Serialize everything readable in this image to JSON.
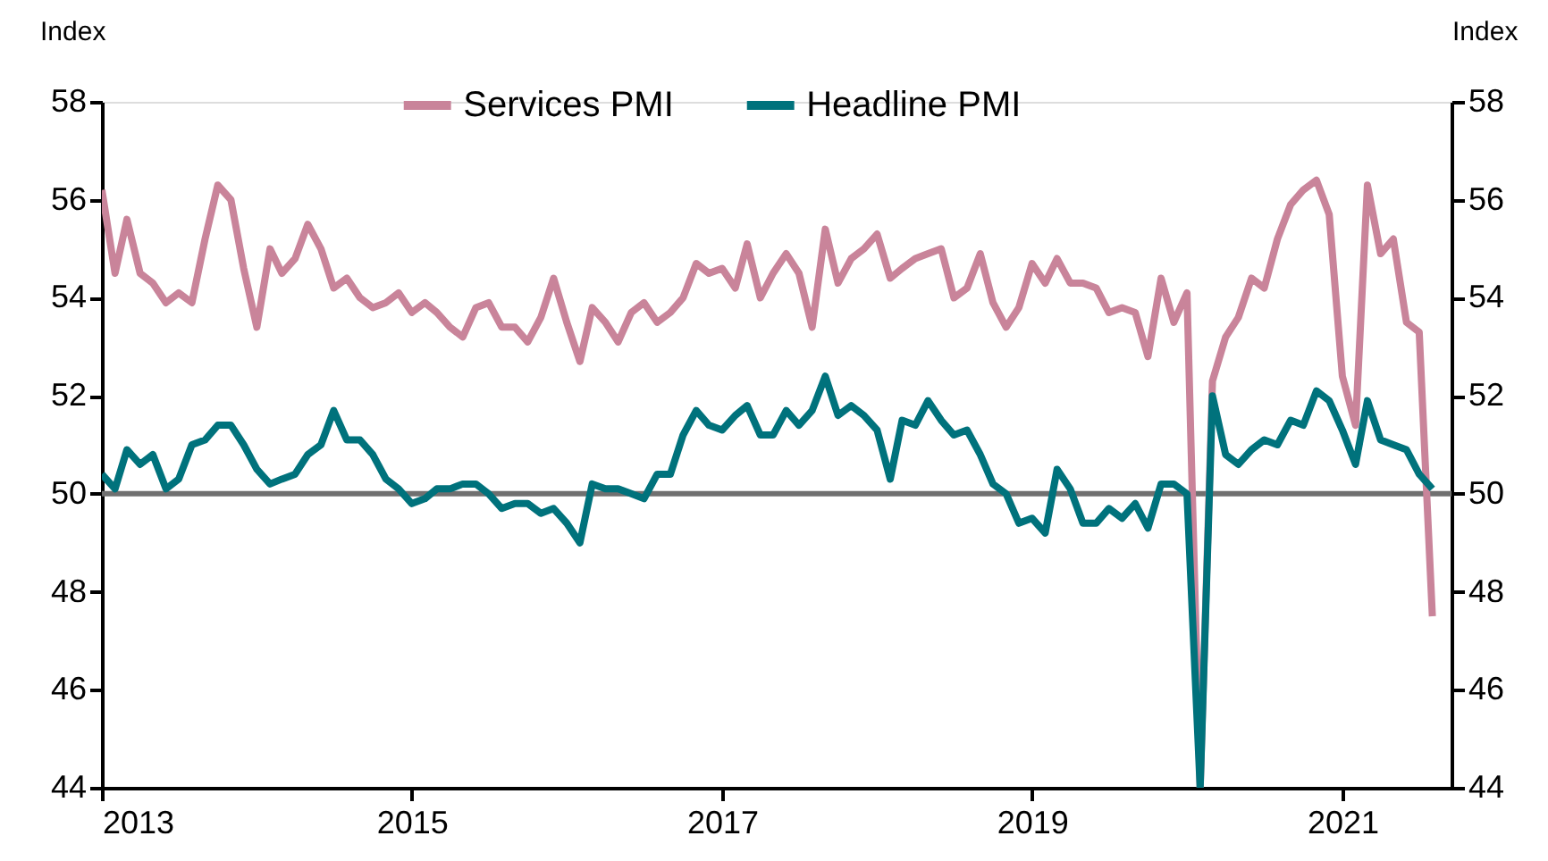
{
  "chart_data": {
    "type": "line",
    "ylabel": "Index",
    "y2label": "Index",
    "xlim": [
      "2013-01",
      "2021-09-15"
    ],
    "xticks": [
      {
        "value": "2013",
        "label": "2013"
      },
      {
        "value": "2015",
        "label": "2015"
      },
      {
        "value": "2017",
        "label": "2017"
      },
      {
        "value": "2019",
        "label": "2019"
      },
      {
        "value": "2021",
        "label": "2021"
      }
    ],
    "ylim": [
      44,
      58
    ],
    "yticks": [
      44,
      46,
      48,
      50,
      52,
      54,
      56,
      58
    ],
    "y2lim": [
      44,
      58
    ],
    "y2ticks": [
      44,
      46,
      48,
      50,
      52,
      54,
      56,
      58
    ],
    "legend": "top",
    "grid": false,
    "x": [
      "2013-01",
      "2013-02",
      "2013-03",
      "2013-04",
      "2013-05",
      "2013-06",
      "2013-07",
      "2013-08",
      "2013-09",
      "2013-10",
      "2013-11",
      "2013-12",
      "2014-01",
      "2014-02",
      "2014-03",
      "2014-04",
      "2014-05",
      "2014-06",
      "2014-07",
      "2014-08",
      "2014-09",
      "2014-10",
      "2014-11",
      "2014-12",
      "2015-01",
      "2015-02",
      "2015-03",
      "2015-04",
      "2015-05",
      "2015-06",
      "2015-07",
      "2015-08",
      "2015-09",
      "2015-10",
      "2015-11",
      "2015-12",
      "2016-01",
      "2016-02",
      "2016-03",
      "2016-04",
      "2016-05",
      "2016-06",
      "2016-07",
      "2016-08",
      "2016-09",
      "2016-10",
      "2016-11",
      "2016-12",
      "2017-01",
      "2017-02",
      "2017-03",
      "2017-04",
      "2017-05",
      "2017-06",
      "2017-07",
      "2017-08",
      "2017-09",
      "2017-10",
      "2017-11",
      "2017-12",
      "2018-01",
      "2018-02",
      "2018-03",
      "2018-04",
      "2018-05",
      "2018-06",
      "2018-07",
      "2018-08",
      "2018-09",
      "2018-10",
      "2018-11",
      "2018-12",
      "2019-01",
      "2019-02",
      "2019-03",
      "2019-04",
      "2019-05",
      "2019-06",
      "2019-07",
      "2019-08",
      "2019-09",
      "2019-10",
      "2019-11",
      "2019-12",
      "2020-01",
      "2020-02",
      "2020-03",
      "2020-04",
      "2020-05",
      "2020-06",
      "2020-07",
      "2020-08",
      "2020-09",
      "2020-10",
      "2020-11",
      "2020-12",
      "2021-01",
      "2021-02",
      "2021-03",
      "2021-04",
      "2021-05",
      "2021-06",
      "2021-07",
      "2021-08"
    ],
    "ref_lines": [
      {
        "axis": "y2",
        "value": 50,
        "color": "#707070"
      }
    ],
    "series": [
      {
        "name": "Services PMI",
        "color": "#c9849a",
        "values": [
          56.2,
          54.5,
          55.6,
          54.5,
          54.3,
          53.9,
          54.1,
          53.9,
          55.2,
          56.3,
          56.0,
          54.6,
          53.4,
          55.0,
          54.5,
          54.8,
          55.5,
          55.0,
          54.2,
          54.4,
          54.0,
          53.8,
          53.9,
          54.1,
          53.7,
          53.9,
          53.7,
          53.4,
          53.2,
          53.8,
          53.9,
          53.4,
          53.4,
          53.1,
          53.6,
          54.4,
          53.5,
          52.7,
          53.8,
          53.5,
          53.1,
          53.7,
          53.9,
          53.5,
          53.7,
          54.0,
          54.7,
          54.5,
          54.6,
          54.2,
          55.1,
          54.0,
          54.5,
          54.9,
          54.5,
          53.4,
          55.4,
          54.3,
          54.8,
          55.0,
          55.3,
          54.4,
          54.6,
          54.8,
          54.9,
          55.0,
          54.0,
          54.2,
          54.9,
          53.9,
          53.4,
          53.8,
          54.7,
          54.3,
          54.8,
          54.3,
          54.3,
          54.2,
          53.7,
          53.8,
          53.7,
          52.8,
          54.4,
          53.5,
          54.1,
          44,
          52.3,
          53.2,
          53.6,
          54.4,
          54.2,
          55.2,
          55.9,
          56.2,
          56.4,
          55.7,
          52.4,
          51.4,
          56.3,
          54.9,
          55.2,
          53.5,
          53.3,
          47.5
        ]
      },
      {
        "name": "Headline PMI",
        "color": "#00727c",
        "values": [
          50.4,
          50.1,
          50.9,
          50.6,
          50.8,
          50.1,
          50.3,
          51.0,
          51.1,
          51.4,
          51.4,
          51.0,
          50.5,
          50.2,
          50.3,
          50.4,
          50.8,
          51.0,
          51.7,
          51.1,
          51.1,
          50.8,
          50.3,
          50.1,
          49.8,
          49.9,
          50.1,
          50.1,
          50.2,
          50.2,
          50.0,
          49.7,
          49.8,
          49.8,
          49.6,
          49.7,
          49.4,
          49.0,
          50.2,
          50.1,
          50.1,
          50.0,
          49.9,
          50.4,
          50.4,
          51.2,
          51.7,
          51.4,
          51.3,
          51.6,
          51.8,
          51.2,
          51.2,
          51.7,
          51.4,
          51.7,
          52.4,
          51.6,
          51.8,
          51.6,
          51.3,
          50.3,
          51.5,
          51.4,
          51.9,
          51.5,
          51.2,
          51.3,
          50.8,
          50.2,
          50.0,
          49.4,
          49.5,
          49.2,
          50.5,
          50.1,
          49.4,
          49.4,
          49.7,
          49.5,
          49.8,
          49.3,
          50.2,
          50.2,
          50.0,
          44,
          52.0,
          50.8,
          50.6,
          50.9,
          51.1,
          51.0,
          51.5,
          51.4,
          52.1,
          51.9,
          51.3,
          50.6,
          51.9,
          51.1,
          51.0,
          50.9,
          50.4,
          50.1
        ]
      }
    ]
  }
}
